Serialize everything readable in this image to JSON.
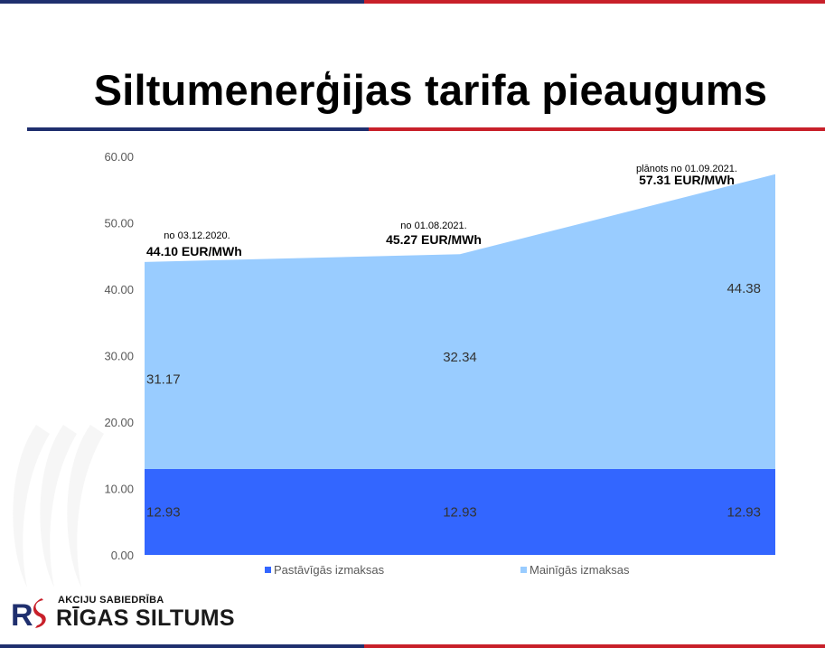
{
  "slide": {
    "title": "Siltumenerģijas tarifa pieaugums"
  },
  "colors": {
    "navy": "#1f2f6e",
    "red": "#c8202a",
    "fixed_series": "#3366ff",
    "variable_series": "#99ccff"
  },
  "chart_data": {
    "type": "area",
    "stacked": true,
    "x": [
      "03.12.2020",
      "01.08.2021",
      "01.09.2021"
    ],
    "series": [
      {
        "name": "Pastāvīgās izmaksas",
        "values": [
          12.93,
          12.93,
          12.93
        ],
        "labels": [
          "12.93",
          "12.93",
          "12.93"
        ]
      },
      {
        "name": "Mainīgās izmaksas",
        "values": [
          31.17,
          32.34,
          44.38
        ],
        "labels": [
          "31.17",
          "32.34",
          "44.38"
        ]
      }
    ],
    "ylim": [
      0,
      60
    ],
    "yticks": [
      "0.00",
      "10.00",
      "20.00",
      "30.00",
      "40.00",
      "50.00",
      "60.00"
    ],
    "grid": false,
    "legend_position": "bottom",
    "annotations": [
      {
        "caption": "no 03.12.2020.",
        "value": "44.10 EUR/MWh"
      },
      {
        "caption": "no 01.08.2021.",
        "value": "45.27 EUR/MWh"
      },
      {
        "caption": "plānots no 01.09.2021.",
        "value": "57.31 EUR/MWh"
      }
    ]
  },
  "logo": {
    "company_type": "AKCIJU SABIEDRĪBA",
    "company_name": "RĪGAS SILTUMS",
    "mark": "RS"
  }
}
